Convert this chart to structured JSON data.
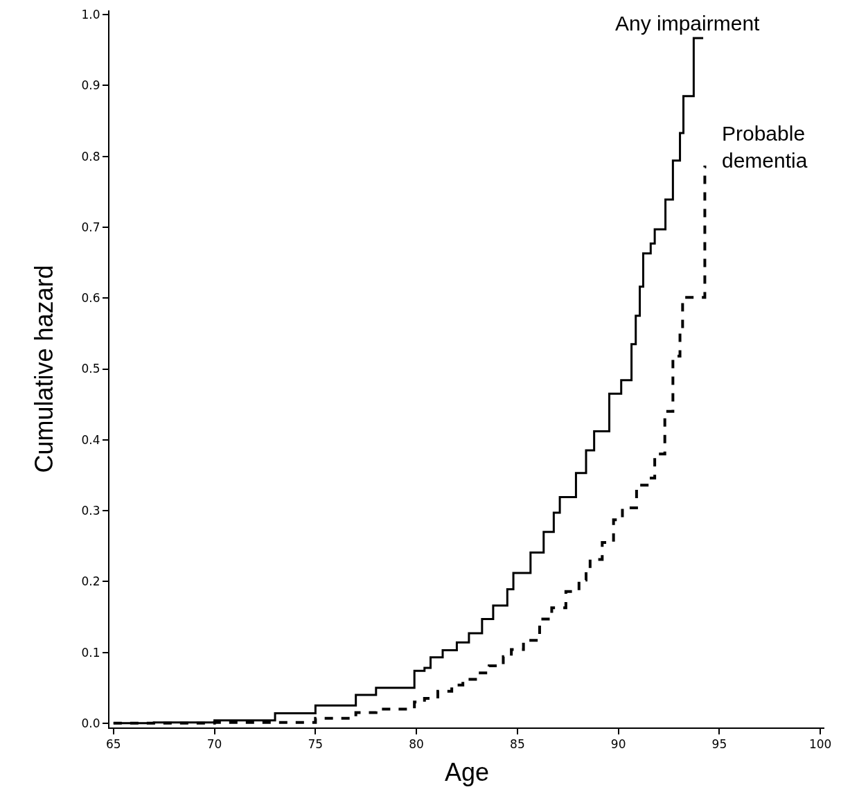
{
  "chart_data": {
    "type": "step",
    "xlabel": "Age",
    "ylabel": "Cumulative hazard",
    "series": [
      {
        "color": "#000000",
        "line_style": "solid",
        "x": [
          65,
          67,
          70,
          73,
          75,
          77,
          78,
          79.9,
          80.4,
          80.7,
          81.3,
          82.0,
          82.6,
          83.25,
          83.8,
          84.5,
          84.8,
          85.65,
          86.3,
          86.8,
          87.1,
          87.9,
          88.4,
          88.8,
          89.55,
          90.14,
          90.65,
          90.86,
          91.06,
          91.23,
          91.6,
          91.8,
          92.33,
          92.7,
          93.05,
          93.22,
          93.73,
          94.2
        ],
        "values": [
          0,
          0.001,
          0.004,
          0.014,
          0.025,
          0.04,
          0.05,
          0.074,
          0.078,
          0.093,
          0.103,
          0.114,
          0.127,
          0.147,
          0.166,
          0.189,
          0.212,
          0.241,
          0.27,
          0.297,
          0.319,
          0.353,
          0.385,
          0.412,
          0.465,
          0.484,
          0.535,
          0.575,
          0.616,
          0.663,
          0.677,
          0.697,
          0.739,
          0.794,
          0.833,
          0.885,
          0.967,
          0.967
        ]
      },
      {
        "color": "#000000",
        "line_style": "dashed",
        "x": [
          65,
          70,
          75,
          77,
          78,
          79.9,
          80.4,
          81.06,
          81.75,
          82.3,
          83.0,
          83.6,
          84.3,
          84.7,
          85.3,
          86.1,
          86.7,
          87.4,
          88.05,
          88.4,
          88.6,
          89.2,
          89.76,
          90.2,
          90.9,
          91.5,
          91.8,
          92.3,
          92.7,
          93.05,
          93.18,
          94.28,
          94.35
        ],
        "values": [
          0,
          0.001,
          0.007,
          0.015,
          0.02,
          0.03,
          0.035,
          0.045,
          0.054,
          0.062,
          0.071,
          0.081,
          0.094,
          0.104,
          0.117,
          0.147,
          0.163,
          0.186,
          0.202,
          0.215,
          0.231,
          0.255,
          0.287,
          0.304,
          0.336,
          0.346,
          0.38,
          0.44,
          0.518,
          0.555,
          0.601,
          0.785,
          0.785
        ]
      }
    ],
    "annotations": [
      "Any impairment",
      "Probable\ndementia"
    ],
    "xlim": [
      64.8,
      100.2
    ],
    "ylim": [
      -0.006,
      1.006
    ],
    "xticks": [
      65,
      70,
      75,
      80,
      85,
      90,
      95,
      100
    ],
    "yticks": [
      {
        "value": 0,
        "label": "0.0"
      },
      0.1,
      0.2,
      0.3,
      0.4,
      0.5,
      0.6,
      0.7,
      0.8,
      0.9,
      {
        "value": 1,
        "label": "1.0"
      }
    ]
  }
}
